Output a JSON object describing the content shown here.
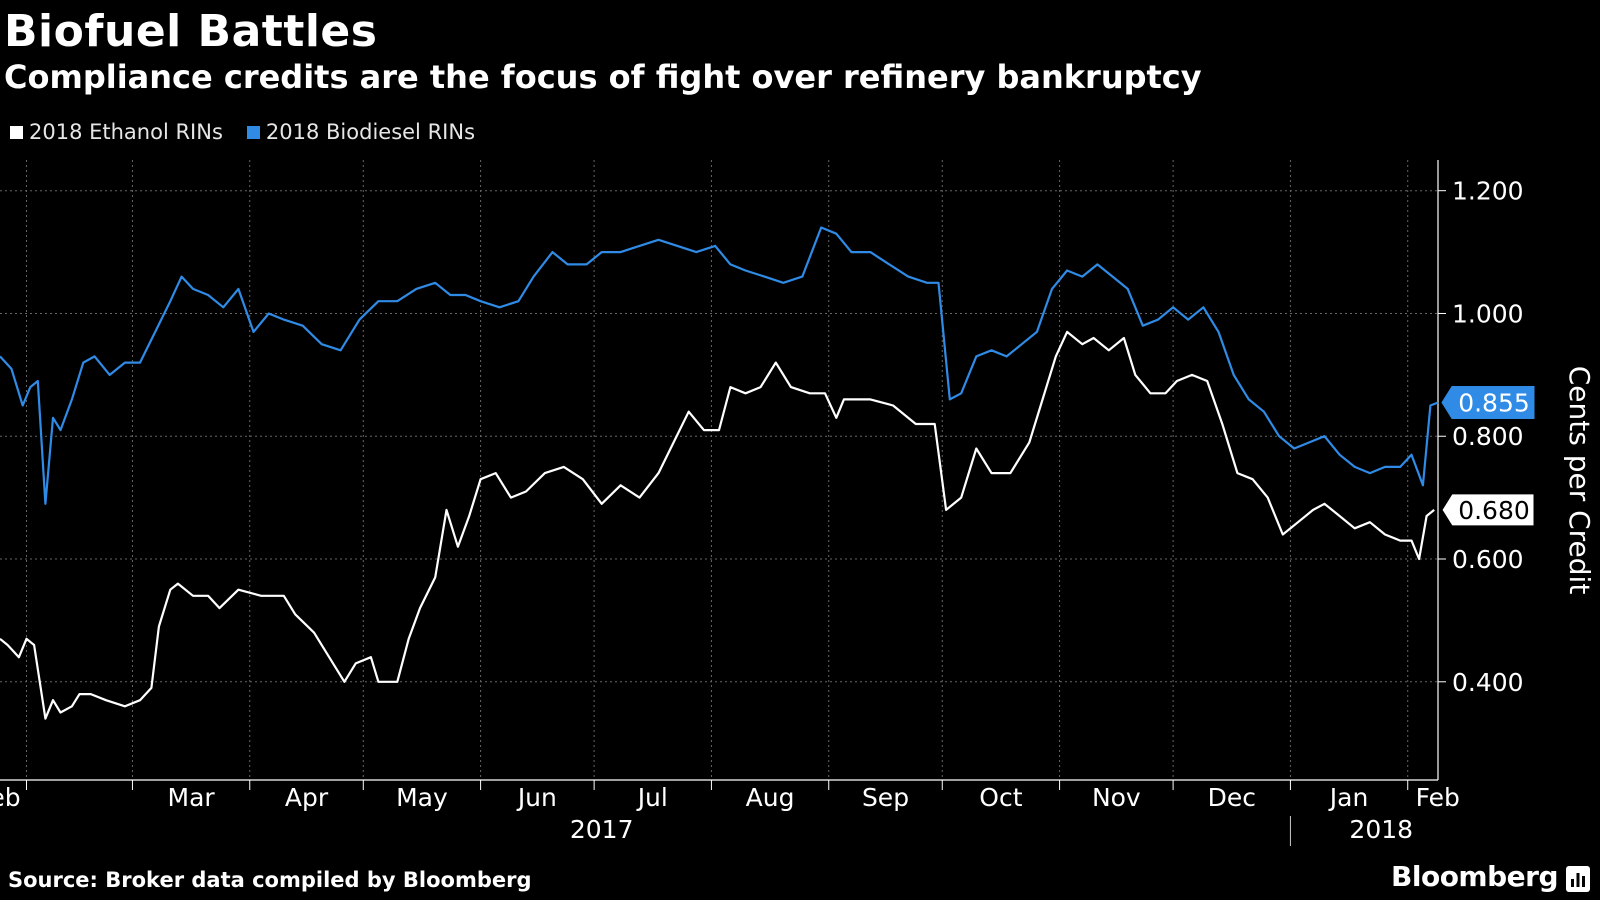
{
  "title": "Biofuel Battles",
  "subtitle": "Compliance credits are the focus of fight over refinery bankruptcy",
  "source": "Source: Broker data compiled by Bloomberg",
  "brand": "Bloomberg",
  "colors": {
    "background": "#000000",
    "ethanol": "#ffffff",
    "biodiesel": "#2f8be6",
    "grid": "#666666"
  },
  "chart_data": {
    "type": "line",
    "title": "Biofuel Battles",
    "subtitle": "Compliance credits are the focus of fight over refinery bankruptcy",
    "ylabel": "Cents per Credit",
    "y_axis_position": "right",
    "ylim": [
      0.24,
      1.25
    ],
    "yticks": [
      "0.400",
      "0.600",
      "0.800",
      "1.000",
      "1.200"
    ],
    "xlim": [
      "2017-01-25",
      "2018-02-09"
    ],
    "x_tick_labels": [
      "Feb",
      "Mar",
      "Apr",
      "May",
      "Jun",
      "Jul",
      "Aug",
      "Sep",
      "Oct",
      "Nov",
      "Dec",
      "Jan",
      "Feb"
    ],
    "x_ticks": [
      "2017-02-01",
      "2017-03-01",
      "2017-04-01",
      "2017-05-01",
      "2017-06-01",
      "2017-07-01",
      "2017-08-01",
      "2017-09-01",
      "2017-10-01",
      "2017-11-01",
      "2017-12-01",
      "2018-01-01",
      "2018-02-01"
    ],
    "year_labels": [
      {
        "label": "2017",
        "x": "2017-07-03"
      },
      {
        "label": "2018",
        "x": "2018-01-25"
      }
    ],
    "grid": true,
    "legend": "top-left",
    "series": [
      {
        "name": "2018 Ethanol RINs",
        "color": "#ffffff",
        "last_label": "0.680",
        "points": [
          [
            "2017-01-25",
            0.47
          ],
          [
            "2017-01-27",
            0.46
          ],
          [
            "2017-01-30",
            0.44
          ],
          [
            "2017-02-01",
            0.47
          ],
          [
            "2017-02-03",
            0.46
          ],
          [
            "2017-02-06",
            0.34
          ],
          [
            "2017-02-08",
            0.37
          ],
          [
            "2017-02-10",
            0.35
          ],
          [
            "2017-02-13",
            0.36
          ],
          [
            "2017-02-15",
            0.38
          ],
          [
            "2017-02-18",
            0.38
          ],
          [
            "2017-02-22",
            0.37
          ],
          [
            "2017-02-27",
            0.36
          ],
          [
            "2017-03-03",
            0.37
          ],
          [
            "2017-03-06",
            0.39
          ],
          [
            "2017-03-08",
            0.49
          ],
          [
            "2017-03-11",
            0.55
          ],
          [
            "2017-03-13",
            0.56
          ],
          [
            "2017-03-17",
            0.54
          ],
          [
            "2017-03-21",
            0.54
          ],
          [
            "2017-03-24",
            0.52
          ],
          [
            "2017-03-29",
            0.55
          ],
          [
            "2017-04-04",
            0.54
          ],
          [
            "2017-04-10",
            0.54
          ],
          [
            "2017-04-13",
            0.51
          ],
          [
            "2017-04-18",
            0.48
          ],
          [
            "2017-04-22",
            0.44
          ],
          [
            "2017-04-26",
            0.4
          ],
          [
            "2017-04-29",
            0.43
          ],
          [
            "2017-05-03",
            0.44
          ],
          [
            "2017-05-05",
            0.4
          ],
          [
            "2017-05-10",
            0.4
          ],
          [
            "2017-05-13",
            0.47
          ],
          [
            "2017-05-16",
            0.52
          ],
          [
            "2017-05-20",
            0.57
          ],
          [
            "2017-05-23",
            0.68
          ],
          [
            "2017-05-26",
            0.62
          ],
          [
            "2017-05-29",
            0.67
          ],
          [
            "2017-06-01",
            0.73
          ],
          [
            "2017-06-05",
            0.74
          ],
          [
            "2017-06-09",
            0.7
          ],
          [
            "2017-06-13",
            0.71
          ],
          [
            "2017-06-18",
            0.74
          ],
          [
            "2017-06-23",
            0.75
          ],
          [
            "2017-06-28",
            0.73
          ],
          [
            "2017-07-03",
            0.69
          ],
          [
            "2017-07-08",
            0.72
          ],
          [
            "2017-07-13",
            0.7
          ],
          [
            "2017-07-18",
            0.74
          ],
          [
            "2017-07-22",
            0.79
          ],
          [
            "2017-07-26",
            0.84
          ],
          [
            "2017-07-30",
            0.81
          ],
          [
            "2017-08-03",
            0.81
          ],
          [
            "2017-08-06",
            0.88
          ],
          [
            "2017-08-10",
            0.87
          ],
          [
            "2017-08-14",
            0.88
          ],
          [
            "2017-08-18",
            0.92
          ],
          [
            "2017-08-22",
            0.88
          ],
          [
            "2017-08-27",
            0.87
          ],
          [
            "2017-08-31",
            0.87
          ],
          [
            "2017-09-03",
            0.83
          ],
          [
            "2017-09-05",
            0.86
          ],
          [
            "2017-09-12",
            0.86
          ],
          [
            "2017-09-18",
            0.85
          ],
          [
            "2017-09-24",
            0.82
          ],
          [
            "2017-09-29",
            0.82
          ],
          [
            "2017-10-02",
            0.68
          ],
          [
            "2017-10-06",
            0.7
          ],
          [
            "2017-10-10",
            0.78
          ],
          [
            "2017-10-14",
            0.74
          ],
          [
            "2017-10-19",
            0.74
          ],
          [
            "2017-10-24",
            0.79
          ],
          [
            "2017-10-27",
            0.85
          ],
          [
            "2017-10-31",
            0.93
          ],
          [
            "2017-11-03",
            0.97
          ],
          [
            "2017-11-07",
            0.95
          ],
          [
            "2017-11-10",
            0.96
          ],
          [
            "2017-11-14",
            0.94
          ],
          [
            "2017-11-18",
            0.96
          ],
          [
            "2017-11-21",
            0.9
          ],
          [
            "2017-11-25",
            0.87
          ],
          [
            "2017-11-29",
            0.87
          ],
          [
            "2017-12-02",
            0.89
          ],
          [
            "2017-12-06",
            0.9
          ],
          [
            "2017-12-10",
            0.89
          ],
          [
            "2017-12-14",
            0.82
          ],
          [
            "2017-12-18",
            0.74
          ],
          [
            "2017-12-22",
            0.73
          ],
          [
            "2017-12-26",
            0.7
          ],
          [
            "2017-12-30",
            0.64
          ],
          [
            "2018-01-03",
            0.66
          ],
          [
            "2018-01-07",
            0.68
          ],
          [
            "2018-01-10",
            0.69
          ],
          [
            "2018-01-14",
            0.67
          ],
          [
            "2018-01-18",
            0.65
          ],
          [
            "2018-01-22",
            0.66
          ],
          [
            "2018-01-26",
            0.64
          ],
          [
            "2018-01-30",
            0.63
          ],
          [
            "2018-02-02",
            0.63
          ],
          [
            "2018-02-04",
            0.6
          ],
          [
            "2018-02-06",
            0.67
          ],
          [
            "2018-02-08",
            0.68
          ]
        ]
      },
      {
        "name": "2018 Biodiesel RINs",
        "color": "#2f8be6",
        "last_label": "0.855",
        "points": [
          [
            "2017-01-25",
            0.93
          ],
          [
            "2017-01-28",
            0.91
          ],
          [
            "2017-01-31",
            0.85
          ],
          [
            "2017-02-02",
            0.88
          ],
          [
            "2017-02-04",
            0.89
          ],
          [
            "2017-02-06",
            0.69
          ],
          [
            "2017-02-08",
            0.83
          ],
          [
            "2017-02-10",
            0.81
          ],
          [
            "2017-02-13",
            0.86
          ],
          [
            "2017-02-16",
            0.92
          ],
          [
            "2017-02-19",
            0.93
          ],
          [
            "2017-02-23",
            0.9
          ],
          [
            "2017-02-27",
            0.92
          ],
          [
            "2017-03-03",
            0.92
          ],
          [
            "2017-03-07",
            0.97
          ],
          [
            "2017-03-11",
            1.02
          ],
          [
            "2017-03-14",
            1.06
          ],
          [
            "2017-03-17",
            1.04
          ],
          [
            "2017-03-21",
            1.03
          ],
          [
            "2017-03-25",
            1.01
          ],
          [
            "2017-03-29",
            1.04
          ],
          [
            "2017-04-02",
            0.97
          ],
          [
            "2017-04-06",
            1.0
          ],
          [
            "2017-04-10",
            0.99
          ],
          [
            "2017-04-15",
            0.98
          ],
          [
            "2017-04-20",
            0.95
          ],
          [
            "2017-04-25",
            0.94
          ],
          [
            "2017-04-30",
            0.99
          ],
          [
            "2017-05-05",
            1.02
          ],
          [
            "2017-05-10",
            1.02
          ],
          [
            "2017-05-15",
            1.04
          ],
          [
            "2017-05-20",
            1.05
          ],
          [
            "2017-05-24",
            1.03
          ],
          [
            "2017-05-28",
            1.03
          ],
          [
            "2017-06-01",
            1.02
          ],
          [
            "2017-06-06",
            1.01
          ],
          [
            "2017-06-11",
            1.02
          ],
          [
            "2017-06-15",
            1.06
          ],
          [
            "2017-06-20",
            1.1
          ],
          [
            "2017-06-24",
            1.08
          ],
          [
            "2017-06-29",
            1.08
          ],
          [
            "2017-07-03",
            1.1
          ],
          [
            "2017-07-08",
            1.1
          ],
          [
            "2017-07-13",
            1.11
          ],
          [
            "2017-07-18",
            1.12
          ],
          [
            "2017-07-23",
            1.11
          ],
          [
            "2017-07-28",
            1.1
          ],
          [
            "2017-08-02",
            1.11
          ],
          [
            "2017-08-06",
            1.08
          ],
          [
            "2017-08-10",
            1.07
          ],
          [
            "2017-08-15",
            1.06
          ],
          [
            "2017-08-20",
            1.05
          ],
          [
            "2017-08-25",
            1.06
          ],
          [
            "2017-08-30",
            1.14
          ],
          [
            "2017-09-03",
            1.13
          ],
          [
            "2017-09-07",
            1.1
          ],
          [
            "2017-09-12",
            1.1
          ],
          [
            "2017-09-17",
            1.08
          ],
          [
            "2017-09-22",
            1.06
          ],
          [
            "2017-09-27",
            1.05
          ],
          [
            "2017-09-30",
            1.05
          ],
          [
            "2017-10-03",
            0.86
          ],
          [
            "2017-10-06",
            0.87
          ],
          [
            "2017-10-10",
            0.93
          ],
          [
            "2017-10-14",
            0.94
          ],
          [
            "2017-10-18",
            0.93
          ],
          [
            "2017-10-22",
            0.95
          ],
          [
            "2017-10-26",
            0.97
          ],
          [
            "2017-10-30",
            1.04
          ],
          [
            "2017-11-03",
            1.07
          ],
          [
            "2017-11-07",
            1.06
          ],
          [
            "2017-11-11",
            1.08
          ],
          [
            "2017-11-15",
            1.06
          ],
          [
            "2017-11-19",
            1.04
          ],
          [
            "2017-11-23",
            0.98
          ],
          [
            "2017-11-27",
            0.99
          ],
          [
            "2017-12-01",
            1.01
          ],
          [
            "2017-12-05",
            0.99
          ],
          [
            "2017-12-09",
            1.01
          ],
          [
            "2017-12-13",
            0.97
          ],
          [
            "2017-12-17",
            0.9
          ],
          [
            "2017-12-21",
            0.86
          ],
          [
            "2017-12-25",
            0.84
          ],
          [
            "2017-12-29",
            0.8
          ],
          [
            "2018-01-02",
            0.78
          ],
          [
            "2018-01-06",
            0.79
          ],
          [
            "2018-01-10",
            0.8
          ],
          [
            "2018-01-14",
            0.77
          ],
          [
            "2018-01-18",
            0.75
          ],
          [
            "2018-01-22",
            0.74
          ],
          [
            "2018-01-26",
            0.75
          ],
          [
            "2018-01-30",
            0.75
          ],
          [
            "2018-02-02",
            0.77
          ],
          [
            "2018-02-05",
            0.72
          ],
          [
            "2018-02-07",
            0.85
          ],
          [
            "2018-02-09",
            0.855
          ]
        ]
      }
    ]
  }
}
